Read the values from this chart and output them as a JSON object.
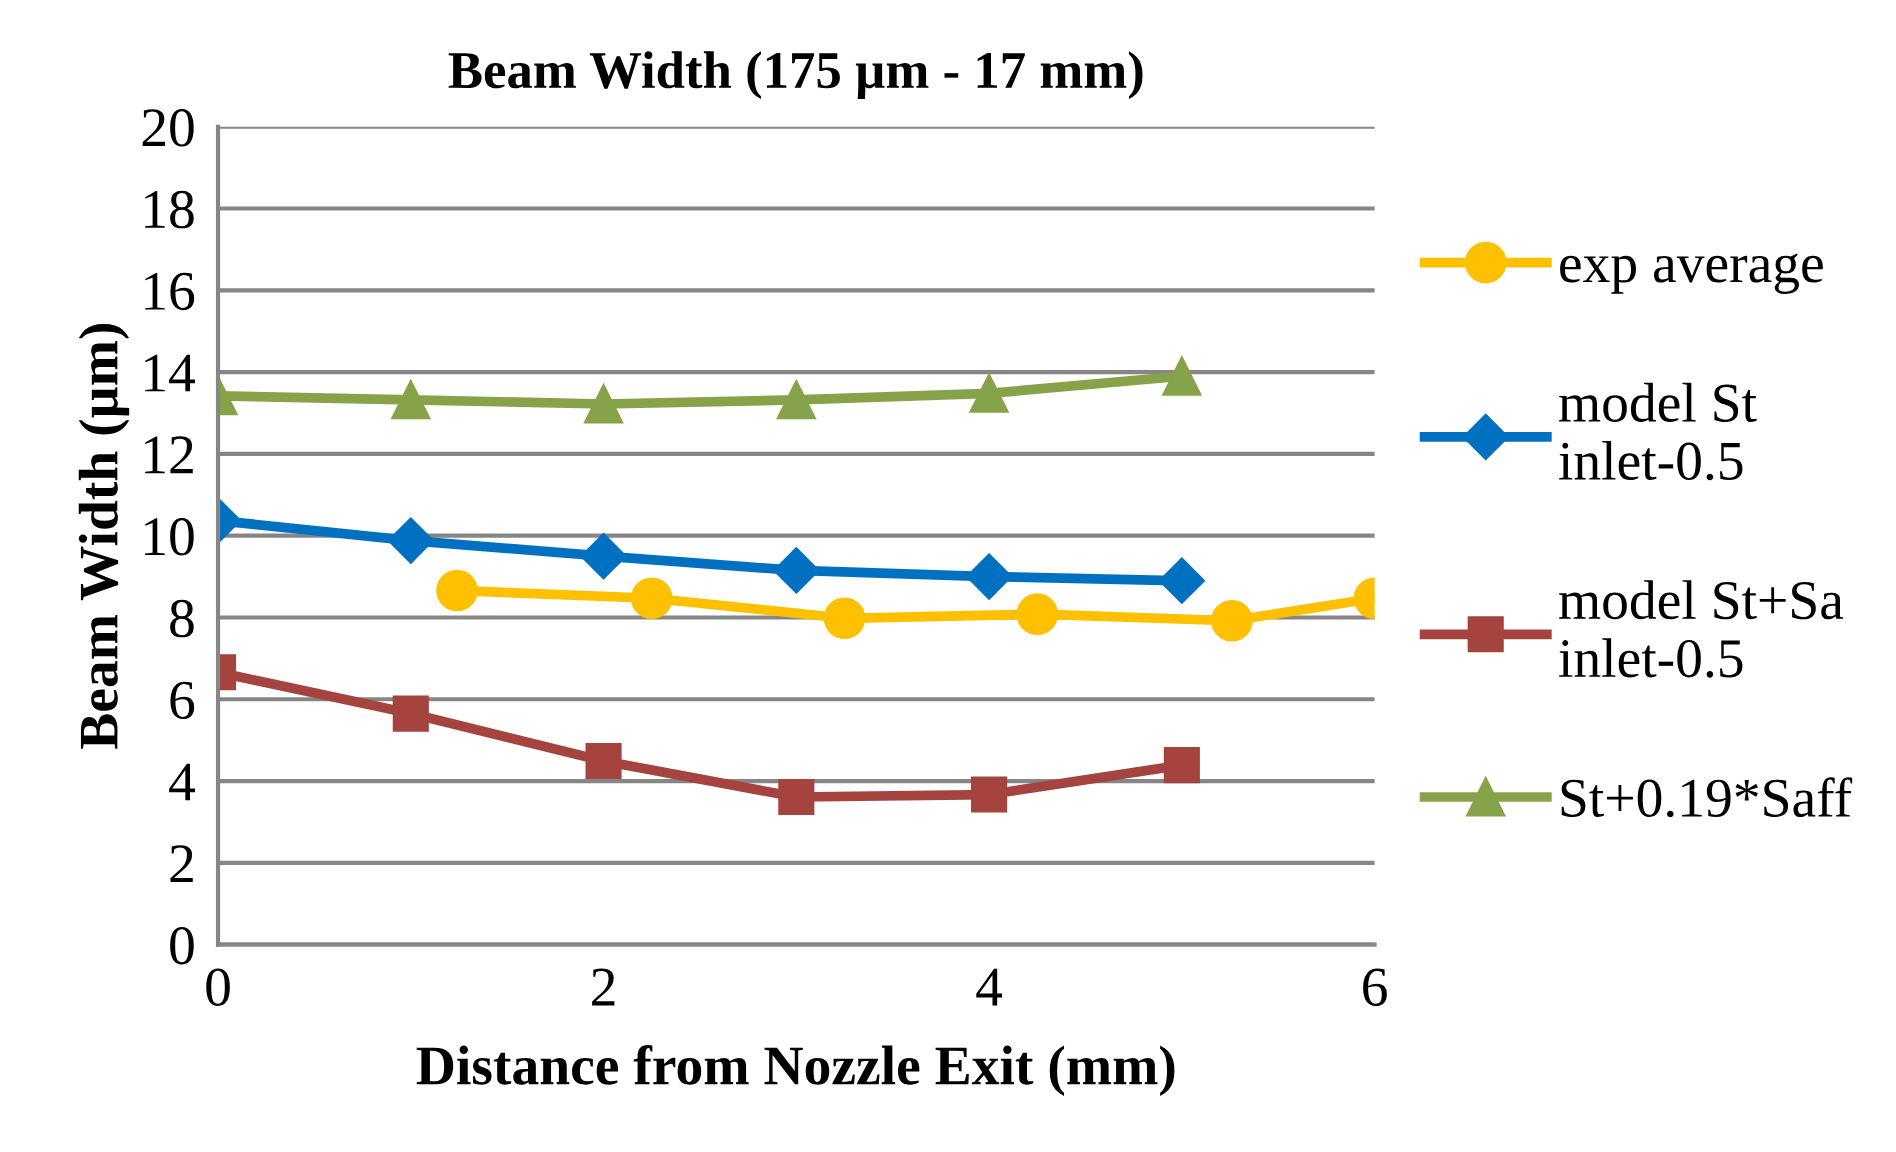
{
  "chart_data": {
    "type": "line",
    "title": "Beam Width (175 µm - 17 mm)",
    "xlabel": "Distance from Nozzle Exit (mm)",
    "ylabel": "Beam Width (µm)",
    "xlim": [
      0,
      6
    ],
    "xticks": [
      0,
      2,
      4,
      6
    ],
    "ylim": [
      0,
      20
    ],
    "yticks": [
      0,
      2,
      4,
      6,
      8,
      10,
      12,
      14,
      16,
      18,
      20
    ],
    "grid": "y",
    "legend": "right",
    "series": [
      {
        "name": "exp average",
        "color": "#ffc000",
        "marker": "circle",
        "x": [
          1.24,
          2.25,
          3.25,
          4.25,
          5.26,
          6
        ],
        "values": [
          8.66,
          8.47,
          7.98,
          8.08,
          7.92,
          8.47
        ]
      },
      {
        "name": "model St\ninlet-0.5",
        "color": "#0070c0",
        "marker": "diamond",
        "x": [
          0,
          1,
          2,
          3,
          4,
          5
        ],
        "values": [
          10.37,
          9.88,
          9.5,
          9.15,
          9.0,
          8.9
        ]
      },
      {
        "name": "model St+Sa\ninlet-0.5",
        "color": "#a5443f",
        "marker": "square",
        "x": [
          0,
          1,
          2,
          3,
          4,
          5
        ],
        "values": [
          6.66,
          5.65,
          4.49,
          3.61,
          3.67,
          4.39
        ]
      },
      {
        "name": "St+0.19*Saff",
        "color": "#86a34a",
        "marker": "triangle",
        "x": [
          0,
          1,
          2,
          3,
          4,
          5
        ],
        "values": [
          13.42,
          13.32,
          13.22,
          13.32,
          13.48,
          13.9
        ]
      }
    ]
  }
}
